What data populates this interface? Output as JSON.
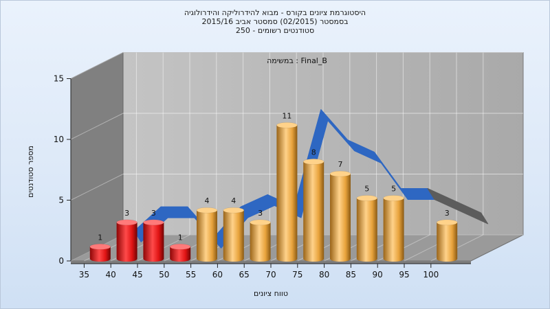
{
  "header": {
    "line1": "היסטוגרמת ציונים בקורס - מבוא להידרוליקה והידרולוגיה",
    "line2": "בסמסטר  (02/2015)  סמסטר אביב 2015/16",
    "line3": "סטודנטים רשומים - 250"
  },
  "chart_data": {
    "type": "bar",
    "title": "היסטוגרמת ציונים בקורס - מבוא להידרוליקה והידרולוגיה",
    "annotation": "במשימה : Final_B",
    "xlabel": "טווח ציונים",
    "ylabel": "מספר סטודנטים",
    "ylim": [
      0,
      15
    ],
    "yticks": [
      "0",
      "5",
      "10",
      "15"
    ],
    "categories": [
      "35",
      "40",
      "45",
      "50",
      "55",
      "60",
      "65",
      "70",
      "75",
      "80",
      "85",
      "90",
      "95",
      "100"
    ],
    "bars": [
      {
        "x": 37.5,
        "value": 1,
        "label": "1",
        "color": "red"
      },
      {
        "x": 42.5,
        "value": 3,
        "label": "3",
        "color": "red"
      },
      {
        "x": 47.5,
        "value": 3,
        "label": "3",
        "color": "red"
      },
      {
        "x": 52.5,
        "value": 1,
        "label": "1",
        "color": "red"
      },
      {
        "x": 57.5,
        "value": 4,
        "label": "4",
        "color": "orange"
      },
      {
        "x": 62.5,
        "value": 4,
        "label": "4",
        "color": "orange"
      },
      {
        "x": 67.5,
        "value": 3,
        "label": "3",
        "color": "orange"
      },
      {
        "x": 72.5,
        "value": 11,
        "label": "11",
        "color": "orange"
      },
      {
        "x": 77.5,
        "value": 8,
        "label": "8",
        "color": "orange"
      },
      {
        "x": 82.5,
        "value": 7,
        "label": "7",
        "color": "orange"
      },
      {
        "x": 87.5,
        "value": 5,
        "label": "5",
        "color": "orange"
      },
      {
        "x": 92.5,
        "value": 5,
        "label": "5",
        "color": "orange"
      },
      {
        "x": 102.5,
        "value": 3,
        "label": "3",
        "color": "orange"
      }
    ],
    "trend_line": {
      "x": [
        40,
        45,
        50,
        55,
        60,
        65,
        70,
        75,
        80,
        85,
        90,
        95,
        100,
        105
      ],
      "y": [
        1.5,
        3.5,
        3.5,
        1,
        3.5,
        4.5,
        3.5,
        11.5,
        9,
        8,
        5,
        5,
        4,
        3
      ]
    },
    "colors": {
      "red": "#e01818",
      "orange": "#e8a33c",
      "trend": "#2e67c2",
      "trend_end": "#5c5c5c",
      "back_wall": "#b5b5b5",
      "side_wall": "#808080",
      "floor": "#9a9a9a"
    },
    "grid": true
  }
}
